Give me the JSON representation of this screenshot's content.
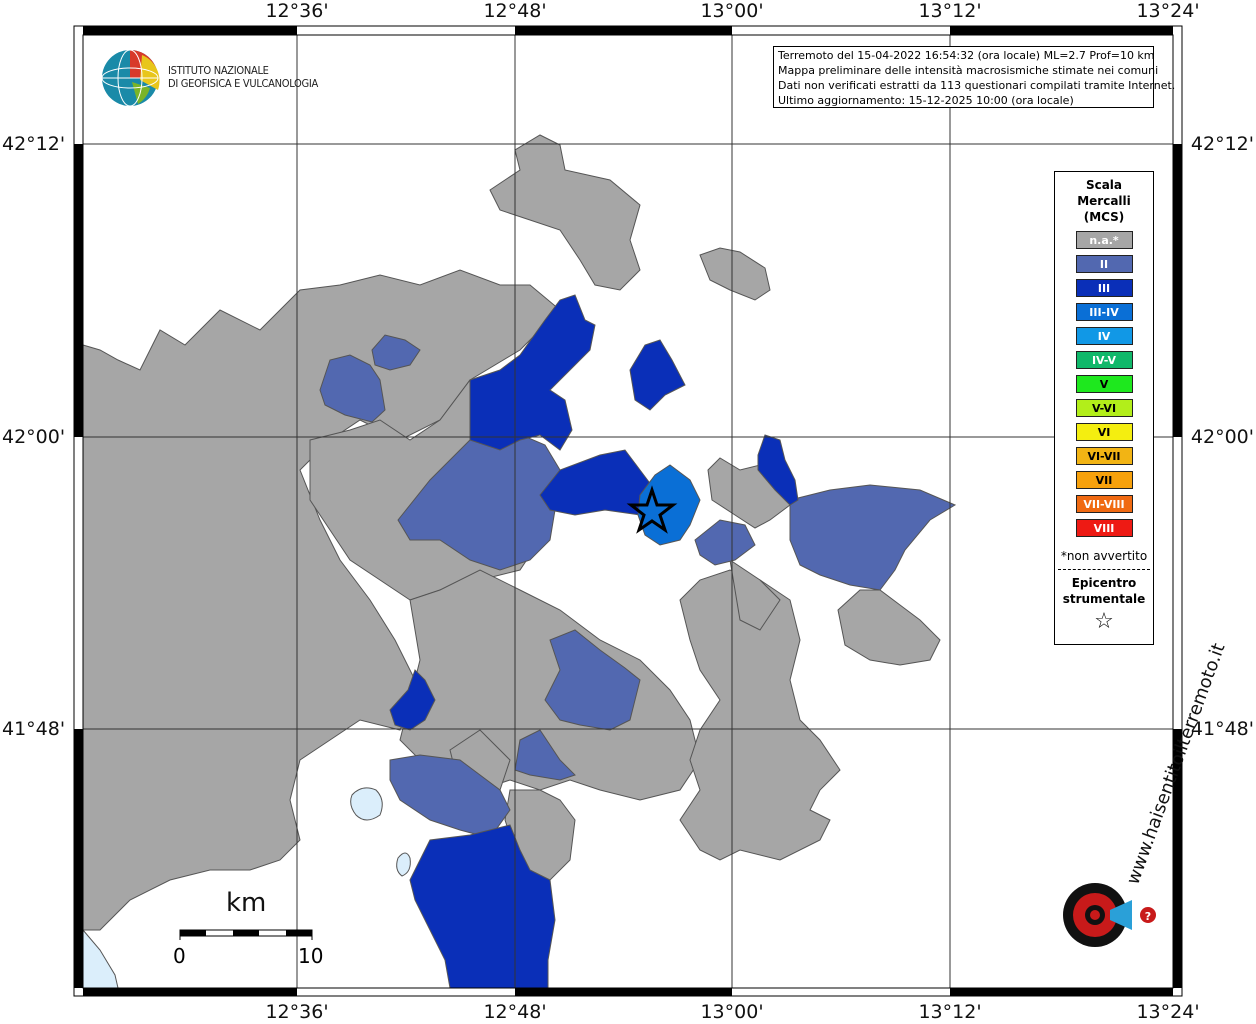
{
  "colors": {
    "na_gray": "#a6a6a6",
    "intensity_II": "#5268b0",
    "intensity_III": "#0a2fb8",
    "intensity_III_IV": "#0a6fd6",
    "lake_blue": "#dbeefb"
  },
  "axes": {
    "top_ticks": [
      "12°36'",
      "12°48'",
      "13°00'",
      "13°12'",
      "13°24'"
    ],
    "bottom_ticks": [
      "12°36'",
      "12°48'",
      "13°00'",
      "13°12'",
      "13°24'"
    ],
    "left_ticks": [
      "42°12'",
      "42°00'",
      "41°48'"
    ],
    "right_ticks": [
      "42°12'",
      "42°00'",
      "41°48'"
    ]
  },
  "logo": {
    "line1": "ISTITUTO NAZIONALE",
    "line2": "DI GEOFISICA E VULCANOLOGIA"
  },
  "info": {
    "line1": "Terremoto del 15-04-2022 16:54:32 (ora locale) ML=2.7 Prof=10 km",
    "line2": "Mappa preliminare delle intensità macrosismiche stimate nei comuni",
    "line3": "Dati non verificati estratti da 113 questionari compilati tramite Internet.",
    "line4": "Ultimo aggiornamento: 15-12-2025 10:00 (ora locale)"
  },
  "legend": {
    "title1": "Scala",
    "title2": "Mercalli",
    "title3": "(MCS)",
    "items": [
      {
        "label": "n.a.*",
        "color": "#a6a6a6"
      },
      {
        "label": "II",
        "color": "#5268b0"
      },
      {
        "label": "III",
        "color": "#0a2fb8"
      },
      {
        "label": "III-IV",
        "color": "#0a6fd6"
      },
      {
        "label": "IV",
        "color": "#1198e6"
      },
      {
        "label": "IV-V",
        "color": "#10b86a"
      },
      {
        "label": "V",
        "color": "#1ee81e"
      },
      {
        "label": "V-VI",
        "color": "#b2ee1a"
      },
      {
        "label": "VI",
        "color": "#f4ee10"
      },
      {
        "label": "VI-VII",
        "color": "#f2b414"
      },
      {
        "label": "VII",
        "color": "#f7a10c"
      },
      {
        "label": "VII-VIII",
        "color": "#f06a12"
      },
      {
        "label": "VIII",
        "color": "#ee1a14"
      }
    ],
    "note": "*non avvertito",
    "epi1": "Epicentro",
    "epi2": "strumentale",
    "star": "☆"
  },
  "scalebar": {
    "unit": "km",
    "start": "0",
    "end": "10"
  },
  "brand": {
    "text": "haisentitoilterremoto.it",
    "url": "www."
  }
}
